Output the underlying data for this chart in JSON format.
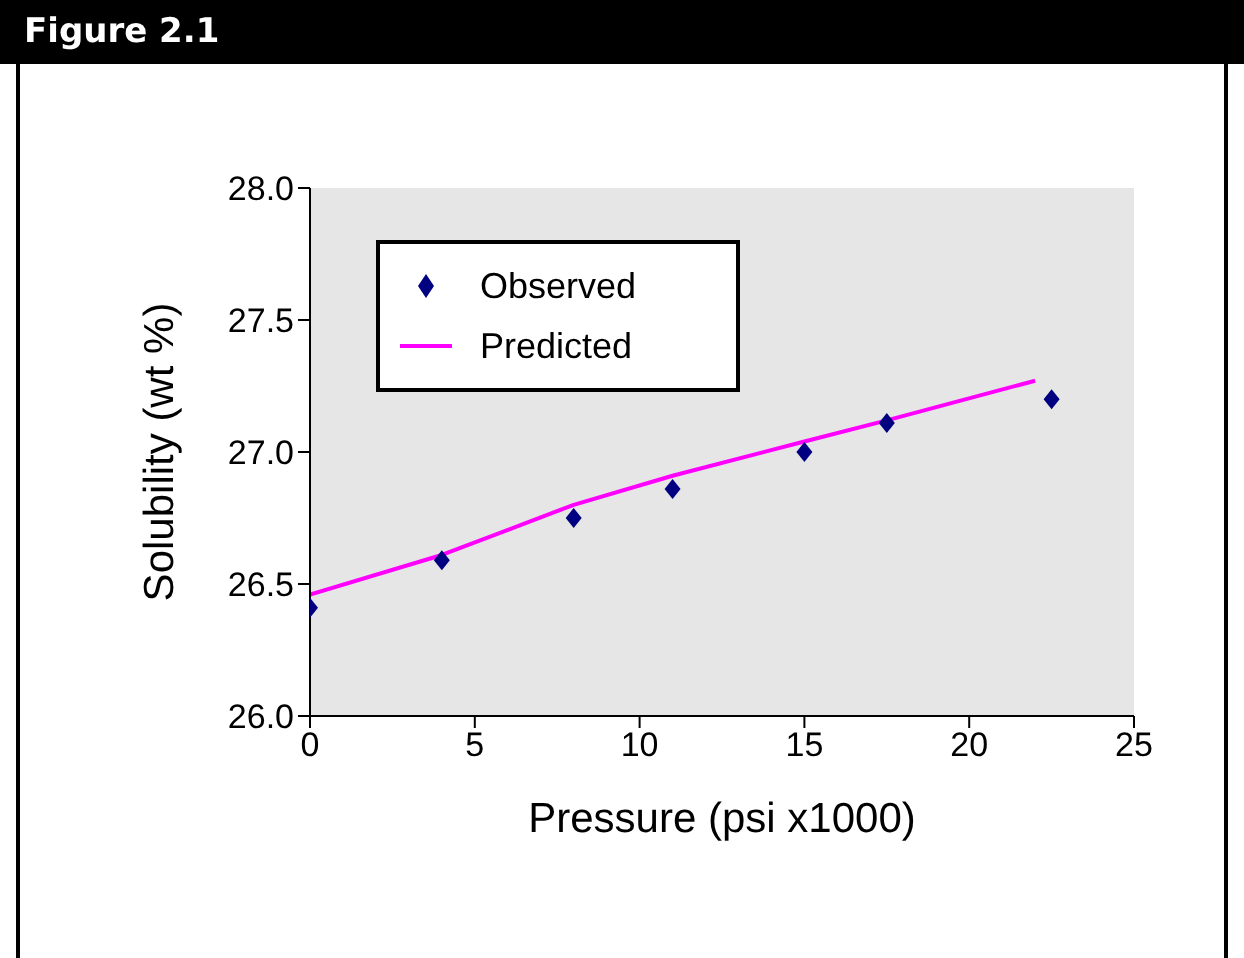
{
  "chart_data": {
    "type": "scatter",
    "title": "Figure 2.1",
    "xlabel": "Pressure (psi x1000)",
    "ylabel": "Solubility (wt %)",
    "xlim": [
      0,
      25
    ],
    "xticks": [
      0,
      5,
      10,
      15,
      20,
      25
    ],
    "ylim": [
      26.0,
      28.0
    ],
    "yticks": [
      {
        "value": 26.0,
        "label": "26.0"
      },
      {
        "value": 26.5,
        "label": "26.5"
      },
      {
        "value": 27.0,
        "label": "27.0"
      },
      {
        "value": 27.5,
        "label": "27.5"
      },
      {
        "value": 28.0,
        "label": "28.0"
      }
    ],
    "legend": "top left",
    "grid": false,
    "series": [
      {
        "name": "Observed",
        "marker": "diamond",
        "color": "#000080",
        "x": [
          0,
          4,
          8,
          11,
          15,
          17.5,
          22.5
        ],
        "values": [
          26.41,
          26.59,
          26.75,
          26.86,
          27.0,
          27.11,
          27.2
        ]
      },
      {
        "name": "Predicted",
        "type": "line",
        "marker": "none",
        "color": "#ff00ff",
        "x": [
          0,
          4,
          8,
          11,
          15,
          17.5,
          22
        ],
        "values": [
          26.46,
          26.61,
          26.8,
          26.91,
          27.04,
          27.12,
          27.27
        ]
      }
    ]
  }
}
